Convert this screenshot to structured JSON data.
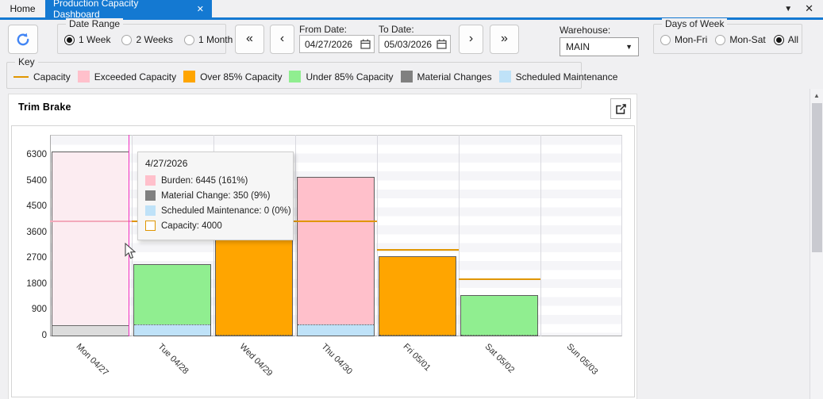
{
  "colors": {
    "accent": "#1479d2",
    "capacity_line": "#e09600",
    "exceeded": "#ffc0cb",
    "over85": "#ffa500",
    "under85": "#90ee90",
    "material": "#808080",
    "maintenance": "#bfe2f8",
    "highlight_exceeded": "#fcecf1",
    "highlight_material": "#dcdcdc",
    "highlight_capacity_line": "#f3a9bb",
    "crosshair": "#f12cc0"
  },
  "tabs": {
    "home_label": "Home",
    "active_label": "Production Capacity Dashboard",
    "close_glyph": "✕",
    "dropdown_glyph": "▼"
  },
  "toolbar": {
    "date_range": {
      "label": "Date Range",
      "options": [
        {
          "label": "1 Week",
          "selected": true
        },
        {
          "label": "2 Weeks",
          "selected": false
        },
        {
          "label": "1 Month",
          "selected": false
        }
      ]
    },
    "nav_first": "«",
    "nav_prev": "‹",
    "nav_next": "›",
    "nav_last": "»",
    "from_date": {
      "label": "From Date:",
      "value": "04/27/2026"
    },
    "to_date": {
      "label": "To Date:",
      "value": "05/03/2026"
    },
    "warehouse": {
      "label": "Warehouse:",
      "value": "MAIN"
    },
    "days_of_week": {
      "label": "Days of Week",
      "options": [
        {
          "label": "Mon-Fri",
          "selected": false
        },
        {
          "label": "Mon-Sat",
          "selected": false
        },
        {
          "label": "All",
          "selected": true
        }
      ]
    }
  },
  "key": {
    "label": "Key",
    "items": [
      {
        "label": "Capacity",
        "swatch": "line",
        "color": "#e09600"
      },
      {
        "label": "Exceeded Capacity",
        "swatch": "box",
        "color": "#ffc0cb"
      },
      {
        "label": "Over 85% Capacity",
        "swatch": "box",
        "color": "#ffa500"
      },
      {
        "label": "Under 85% Capacity",
        "swatch": "box",
        "color": "#90ee90"
      },
      {
        "label": "Material Changes",
        "swatch": "box",
        "color": "#808080"
      },
      {
        "label": "Scheduled Maintenance",
        "swatch": "box",
        "color": "#bfe2f8"
      }
    ]
  },
  "chart_title": "Trim Brake",
  "tooltip": {
    "date": "4/27/2026",
    "rows": [
      {
        "label": "Burden: 6445 (161%)",
        "color": "#ffc0cb",
        "outline": false
      },
      {
        "label": "Material Change: 350 (9%)",
        "color": "#808080",
        "outline": false
      },
      {
        "label": "Scheduled Maintenance: 0 (0%)",
        "color": "#bfe2f8",
        "outline": false
      },
      {
        "label": "Capacity: 4000",
        "color": "#ffffff",
        "outline": true
      }
    ]
  },
  "chart_data": {
    "type": "bar",
    "stacked": true,
    "title": "Trim Brake",
    "y_ticks": [
      0,
      900,
      1800,
      2700,
      3600,
      4500,
      5400,
      6300
    ],
    "ylim": [
      0,
      7000
    ],
    "grid": true,
    "categories": [
      "Mon 04/27",
      "Tue 04/28",
      "Wed 04/29",
      "Thu 04/30",
      "Fri 05/01",
      "Sat 05/02",
      "Sun 05/03"
    ],
    "days": [
      {
        "label": "Mon 04/27",
        "burden": 6445,
        "material_change": 350,
        "scheduled_maintenance": 0,
        "capacity": 4000,
        "status": "exceeded",
        "highlighted": true
      },
      {
        "label": "Tue 04/28",
        "burden": 2520,
        "material_change": 0,
        "scheduled_maintenance": 400,
        "capacity": 4000,
        "status": "under85",
        "highlighted": false
      },
      {
        "label": "Wed 04/29",
        "burden": 3500,
        "material_change": 0,
        "scheduled_maintenance": 0,
        "capacity": 4000,
        "status": "over85",
        "highlighted": false
      },
      {
        "label": "Thu 04/30",
        "burden": 5550,
        "material_change": 0,
        "scheduled_maintenance": 400,
        "capacity": 4000,
        "status": "exceeded",
        "highlighted": false
      },
      {
        "label": "Fri 05/01",
        "burden": 2800,
        "material_change": 0,
        "scheduled_maintenance": 0,
        "capacity": 3000,
        "status": "over85",
        "highlighted": false
      },
      {
        "label": "Sat 05/02",
        "burden": 1450,
        "material_change": 0,
        "scheduled_maintenance": 0,
        "capacity": 2000,
        "status": "under85",
        "highlighted": false
      },
      {
        "label": "Sun 05/03",
        "burden": 0,
        "material_change": 0,
        "scheduled_maintenance": 0,
        "capacity": null,
        "status": "none",
        "highlighted": false
      }
    ]
  }
}
